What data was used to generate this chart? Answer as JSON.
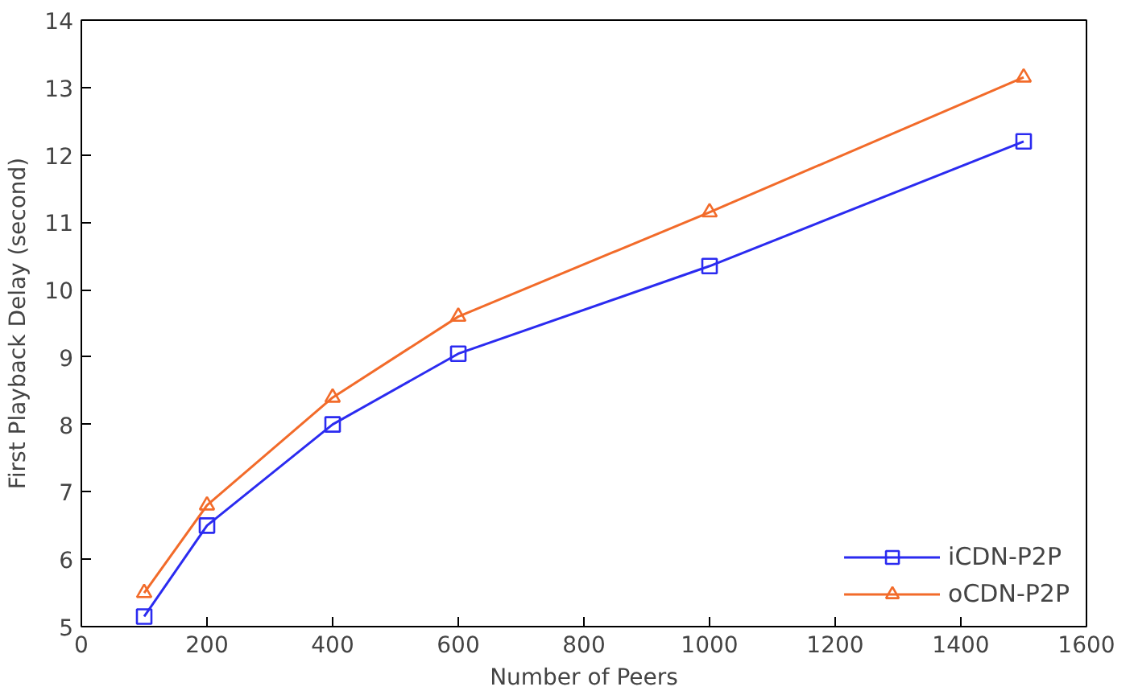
{
  "chart_data": {
    "type": "line",
    "xlabel": "Number of Peers",
    "ylabel": "First Playback Delay (second)",
    "x": [
      100,
      200,
      400,
      600,
      1000,
      1500
    ],
    "series": [
      {
        "name": "iCDN-P2P",
        "color": "#2b2bf0",
        "marker": "square",
        "values": [
          5.15,
          6.5,
          8.0,
          9.05,
          10.35,
          12.2
        ]
      },
      {
        "name": "oCDN-P2P",
        "color": "#f26b2a",
        "marker": "triangle",
        "values": [
          5.5,
          6.8,
          8.4,
          9.6,
          11.15,
          13.15
        ]
      }
    ],
    "xlim": [
      0,
      1600
    ],
    "xticks": [
      0,
      200,
      400,
      600,
      800,
      1000,
      1200,
      1400,
      1600
    ],
    "ylim": [
      5,
      14
    ],
    "yticks": [
      5,
      6,
      7,
      8,
      9,
      10,
      11,
      12,
      13,
      14
    ],
    "grid": false,
    "legend": "bottom right",
    "line_style": "solid"
  }
}
